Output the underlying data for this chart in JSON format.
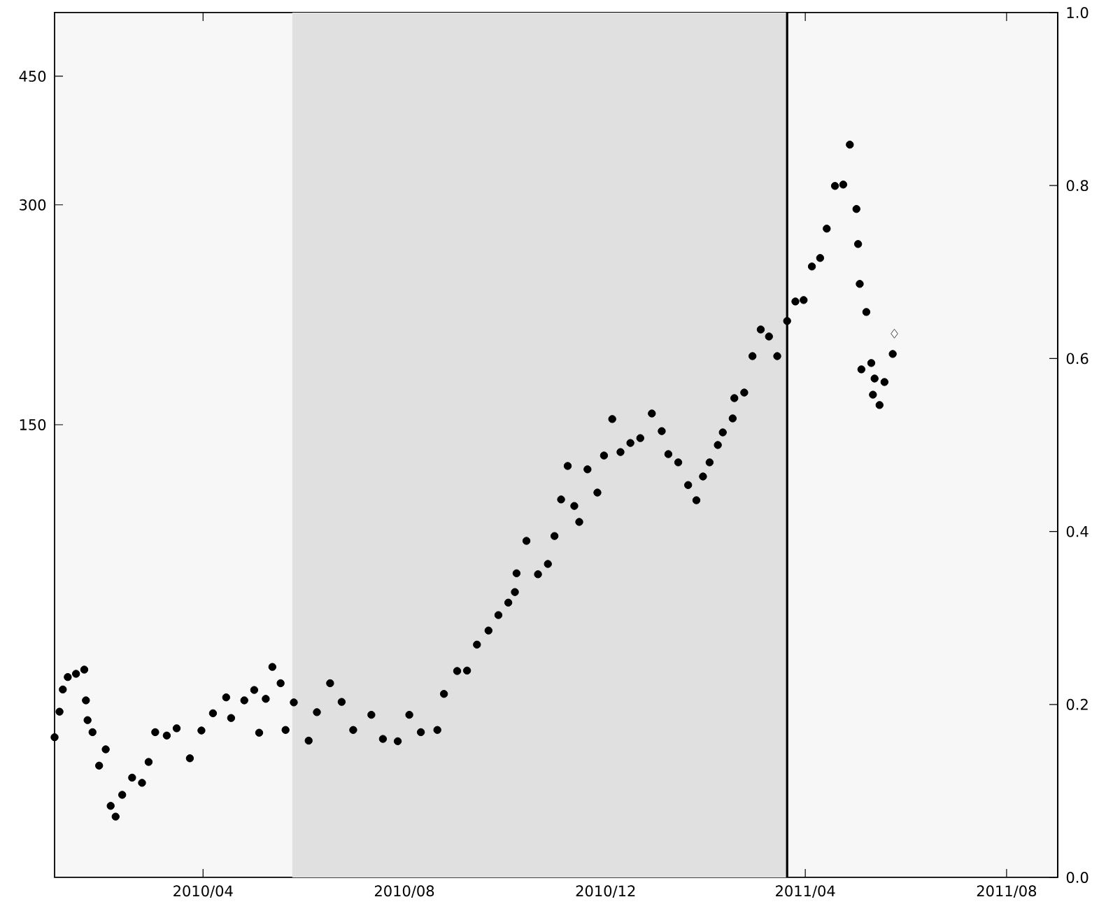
{
  "chart_data": {
    "type": "scatter",
    "log": "y",
    "xlim": [
      "2010-01-01",
      "2011-09-01"
    ],
    "xticks": [
      {
        "value": "2010-04-01",
        "label": "2010/04"
      },
      {
        "value": "2010-08-01",
        "label": "2010/08"
      },
      {
        "value": "2010-12-01",
        "label": "2010/12"
      },
      {
        "value": "2011-04-01",
        "label": "2011/04"
      },
      {
        "value": "2011-08-01",
        "label": "2011/08"
      }
    ],
    "ylim": [
      36,
      550
    ],
    "yticks": [
      150,
      300,
      450
    ],
    "y2lim": [
      0,
      1
    ],
    "y2ticks": [
      {
        "value": 0,
        "label": "0.0"
      },
      {
        "value": 0.2,
        "label": "0.2"
      },
      {
        "value": 0.4,
        "label": "0.4"
      },
      {
        "value": 0.6,
        "label": "0.6"
      },
      {
        "value": 0.8,
        "label": "0.8"
      },
      {
        "value": 1,
        "label": "1.0"
      }
    ],
    "bands": [
      {
        "axis": "x",
        "from": "2010-05-25",
        "to": "2011-03-21",
        "color": "#e0e0e0"
      }
    ],
    "ref_lines": [
      {
        "axis": "x",
        "value": "2011-03-21",
        "color": "#000000",
        "line_style": "solid"
      }
    ],
    "series": [
      {
        "color": "#000000",
        "marker": "circle",
        "x": [
          "2010-01-01",
          "2010-01-04",
          "2010-01-06",
          "2010-01-09",
          "2010-01-14",
          "2010-01-19",
          "2010-01-20",
          "2010-01-21",
          "2010-01-24",
          "2010-01-28",
          "2010-02-01",
          "2010-02-04",
          "2010-02-07",
          "2010-02-11",
          "2010-02-17",
          "2010-02-23",
          "2010-02-27",
          "2010-03-03",
          "2010-03-10",
          "2010-03-16",
          "2010-03-24",
          "2010-03-31",
          "2010-04-07",
          "2010-04-15",
          "2010-04-18",
          "2010-04-26",
          "2010-05-02",
          "2010-05-05",
          "2010-05-09",
          "2010-05-13",
          "2010-05-18",
          "2010-05-21",
          "2010-05-26",
          "2010-06-04",
          "2010-06-09",
          "2010-06-17",
          "2010-06-24",
          "2010-07-01",
          "2010-07-12",
          "2010-07-19",
          "2010-07-28",
          "2010-08-04",
          "2010-08-11",
          "2010-08-21",
          "2010-08-25",
          "2010-09-02",
          "2010-09-08",
          "2010-09-14",
          "2010-09-21",
          "2010-09-27",
          "2010-10-03",
          "2010-10-07",
          "2010-10-08",
          "2010-10-14",
          "2010-10-21",
          "2010-10-27",
          "2010-10-31",
          "2010-11-04",
          "2010-11-08",
          "2010-11-12",
          "2010-11-15",
          "2010-11-20",
          "2010-11-26",
          "2010-11-30",
          "2010-12-05",
          "2010-12-10",
          "2010-12-16",
          "2010-12-22",
          "2010-12-29",
          "2011-01-04",
          "2011-01-08",
          "2011-01-14",
          "2011-01-20",
          "2011-01-25",
          "2011-01-29",
          "2011-02-02",
          "2011-02-07",
          "2011-02-10",
          "2011-02-16",
          "2011-02-17",
          "2011-02-23",
          "2011-02-28",
          "2011-03-05",
          "2011-03-10",
          "2011-03-15",
          "2011-03-21",
          "2011-03-26",
          "2011-03-31",
          "2011-04-05",
          "2011-04-10",
          "2011-04-14",
          "2011-04-19",
          "2011-04-24",
          "2011-04-28",
          "2011-05-02",
          "2011-05-03",
          "2011-05-04",
          "2011-05-05",
          "2011-05-08",
          "2011-05-11",
          "2011-05-12",
          "2011-05-13",
          "2011-05-16",
          "2011-05-19",
          "2011-05-24"
        ],
        "values": [
          56.0,
          60.7,
          65.1,
          67.7,
          68.4,
          69.3,
          62.9,
          59.1,
          56.9,
          51.2,
          53.9,
          45.1,
          43.6,
          46.7,
          49.3,
          48.5,
          51.8,
          56.9,
          56.3,
          57.6,
          52.4,
          57.2,
          60.4,
          63.5,
          59.5,
          62.9,
          65.0,
          56.8,
          63.2,
          69.9,
          66.4,
          57.3,
          62.5,
          55.4,
          60.6,
          66.4,
          62.6,
          57.3,
          60.1,
          55.7,
          55.3,
          60.1,
          56.9,
          57.3,
          64.2,
          69.0,
          69.1,
          75.0,
          78.4,
          82.3,
          85.6,
          88.5,
          93.9,
          104.0,
          93.6,
          96.7,
          105.6,
          118.5,
          131.7,
          116.1,
          110.4,
          130.3,
          121.1,
          136.1,
          152.7,
          137.6,
          141.6,
          143.8,
          155.4,
          147.0,
          136.7,
          133.2,
          124.0,
          118.2,
          127.4,
          133.2,
          140.7,
          146.4,
          153.0,
          163.1,
          166.0,
          186.2,
          202.5,
          198.1,
          186.2,
          208.0,
          221.2,
          222.2,
          247.0,
          253.7,
          278.3,
          318.4,
          319.8,
          362.7,
          296.1,
          265.1,
          233.8,
          178.6,
          214.0,
          182.2,
          164.9,
          173.5,
          159.6,
          171.6,
          187.5
        ]
      },
      {
        "color": "#404040",
        "marker": "diamond",
        "x": [
          "2011-05-25"
        ],
        "values": [
          199.9
        ]
      }
    ]
  }
}
